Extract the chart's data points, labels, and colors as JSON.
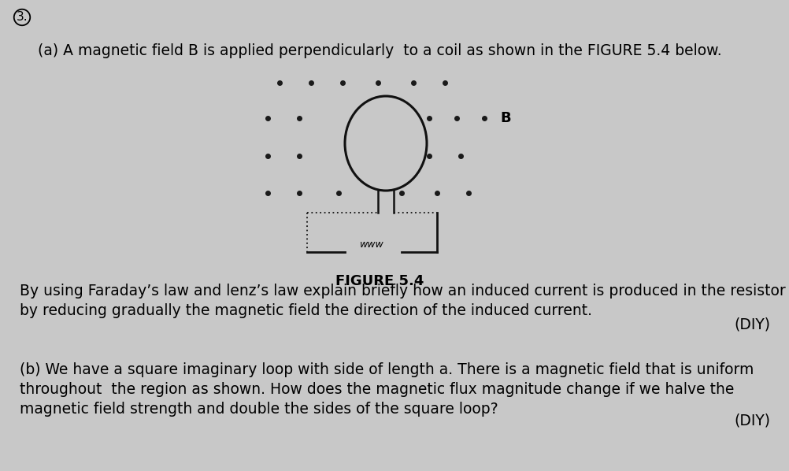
{
  "bg_color": "#c8c8c8",
  "fig_width": 10.03,
  "fig_height": 5.98,
  "question_number": "3.",
  "part_a_text": "(a) A magnetic field B is applied perpendicularly  to a coil as shown in the FIGURE 5.4 below.",
  "figure_label": "FIGURE 5.4",
  "part_a_answer_line1": "By using Faraday’s law and lenz’s law explain briefly how an induced current is produced in the resistor",
  "part_a_answer_line2": "by reducing gradually the magnetic field the direction of the induced current.",
  "diy_1": "(DIY)",
  "part_b_line1": "(b) We have a square imaginary loop with side of length a. There is a magnetic field that is uniform",
  "part_b_line2": "throughout  the region as shown. How does the magnetic flux magnitude change if we halve the",
  "part_b_line3": "magnetic field strength and double the sides of the square loop?",
  "diy_2": "(DIY)",
  "dot_color": "#1a1a1a",
  "coil_color": "#111111",
  "line_color": "#111111",
  "wire_symbol": "www"
}
